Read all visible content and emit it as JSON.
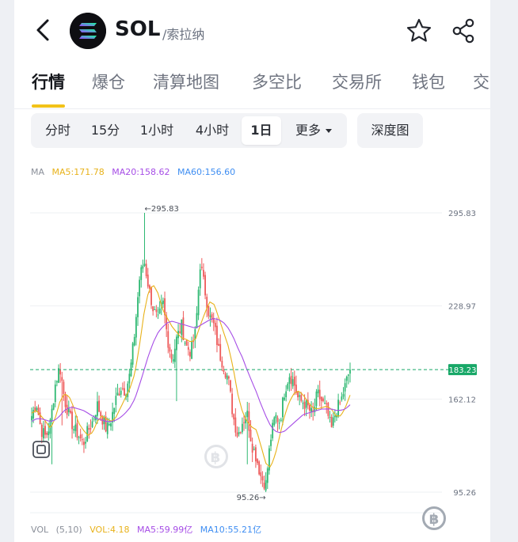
{
  "header": {
    "symbol": "SOL",
    "name": "/索拉纳"
  },
  "tabs": [
    {
      "label": "行情",
      "active": true
    },
    {
      "label": "爆仓"
    },
    {
      "label": "清算地图"
    },
    {
      "label": "多空比"
    },
    {
      "label": "交易所"
    },
    {
      "label": "钱包"
    },
    {
      "label": "交"
    }
  ],
  "intervals": [
    {
      "label": "分时"
    },
    {
      "label": "15分"
    },
    {
      "label": "1小时"
    },
    {
      "label": "4小时"
    },
    {
      "label": "1日",
      "active": true
    },
    {
      "label": "更多"
    }
  ],
  "depth_label": "深度图",
  "indicators": {
    "ma_title": "MA",
    "ma5": "MA5:171.78",
    "ma20": "MA20:158.62",
    "ma60": "MA60:156.60",
    "vol_title": "VOL",
    "vol_params": "(5,10)",
    "vol_value": "VOL:4.18",
    "vol_ma5": "MA5:59.99亿",
    "vol_ma10": "MA10:55.21亿"
  },
  "chart_data": {
    "type": "candlestick",
    "price_ticks": [
      "295.83",
      "228.97",
      "162.12",
      "95.26"
    ],
    "tick_values": [
      295.83,
      228.97,
      162.12,
      95.26
    ],
    "ylim": [
      95.26,
      295.83
    ],
    "last_price": 183.23,
    "last_price_label": "183.23",
    "high_annotation": "←295.83",
    "low_annotation": "95.26→",
    "close_path": [
      150,
      160,
      140,
      135,
      145,
      172,
      186,
      162,
      150,
      141,
      136,
      130,
      139,
      146,
      158,
      149,
      140,
      148,
      162,
      171,
      168,
      180,
      210,
      248,
      262,
      242,
      226,
      218,
      232,
      206,
      190,
      206,
      215,
      200,
      196,
      210,
      260,
      240,
      221,
      214,
      196,
      186,
      176,
      150,
      136,
      146,
      152,
      130,
      120,
      106,
      101,
      133,
      150,
      146,
      168,
      180,
      174,
      161,
      160,
      156,
      150,
      166,
      160,
      154,
      140,
      154,
      160,
      172,
      184
    ],
    "ma_period_short_path": [
      152,
      154,
      150,
      146,
      141,
      148,
      160,
      166,
      164,
      156,
      145,
      140,
      136,
      138,
      146,
      150,
      148,
      146,
      149,
      156,
      163,
      170,
      180,
      200,
      224,
      240,
      244,
      238,
      226,
      220,
      214,
      210,
      206,
      205,
      203,
      205,
      215,
      224,
      232,
      230,
      220,
      210,
      200,
      185,
      166,
      153,
      146,
      142,
      140,
      128,
      116,
      113,
      122,
      136,
      150,
      160,
      166,
      168,
      165,
      160,
      156,
      155,
      156,
      157,
      155,
      150,
      150,
      156,
      165
    ],
    "ma_period_mid_path": [
      146,
      148,
      148,
      147,
      146,
      147,
      150,
      154,
      156,
      156,
      155,
      154,
      152,
      150,
      148,
      147,
      146,
      146,
      147,
      149,
      152,
      156,
      162,
      172,
      183,
      194,
      203,
      210,
      214,
      217,
      218,
      217,
      216,
      215,
      214,
      213,
      215,
      217,
      219,
      220,
      219,
      217,
      213,
      207,
      199,
      192,
      183,
      175,
      167,
      158,
      150,
      143,
      139,
      138,
      139,
      142,
      145,
      148,
      151,
      152,
      153,
      154,
      155,
      155,
      155,
      154,
      154,
      155,
      158
    ],
    "colors": {
      "up": "#2eb872",
      "down": "#ee5a5a",
      "ma5": "#e8b21a",
      "ma20": "#a64de6",
      "ma60": "#3f8ef2",
      "last_price": "#18a868"
    }
  }
}
